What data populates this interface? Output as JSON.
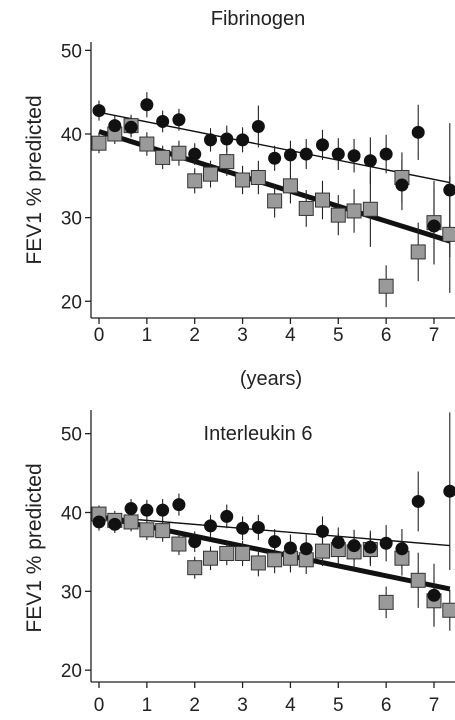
{
  "chart_data": [
    {
      "type": "scatter",
      "title": "Fibrinogen",
      "xlabel": "(years)",
      "ylabel": "FEV1 % predicted",
      "xlim": [
        -0.15,
        7.35
      ],
      "ylim": [
        18,
        51
      ],
      "xticks": [
        "0",
        "1",
        "2",
        "3",
        "4",
        "5",
        "6",
        "7"
      ],
      "yticks": [
        "20",
        "30",
        "40",
        "50"
      ],
      "grid": false,
      "series": [
        {
          "marker": "circle",
          "color": "#111111",
          "x": [
            0,
            0.33,
            0.67,
            1,
            1.33,
            1.67,
            2,
            2.33,
            2.67,
            3,
            3.33,
            3.67,
            4,
            4.33,
            4.67,
            5,
            5.33,
            5.67,
            6,
            6.33,
            6.67,
            7,
            7.33
          ],
          "y": [
            42.8,
            41,
            40.8,
            43.5,
            41.5,
            41.7,
            37.6,
            39.3,
            39.4,
            39.3,
            40.9,
            37.1,
            37.5,
            37.6,
            38.7,
            37.6,
            37.4,
            36.8,
            37.6,
            33.9,
            40.2,
            29,
            33.3
          ],
          "err": [
            1.2,
            1.2,
            1.2,
            1.5,
            1.3,
            1.3,
            1.3,
            1.4,
            1.6,
            1.5,
            2.5,
            1.5,
            1.7,
            1.8,
            1.8,
            1.9,
            2,
            2.8,
            2.3,
            3,
            3.3,
            4.5,
            8
          ],
          "trend": {
            "x0": 0,
            "y0": 42.6,
            "x1": 7.33,
            "y1": 34.2
          }
        },
        {
          "marker": "square",
          "color": "#9a9a9a",
          "x": [
            0,
            0.33,
            0.67,
            1,
            1.33,
            1.67,
            2,
            2.33,
            2.67,
            3,
            3.33,
            3.67,
            4,
            4.33,
            4.67,
            5,
            5.33,
            5.67,
            6,
            6.33,
            6.67,
            7,
            7.33
          ],
          "y": [
            38.9,
            40,
            41,
            38.8,
            37.2,
            37.7,
            34.4,
            35.2,
            36.7,
            34.5,
            34.8,
            32,
            33.8,
            31.1,
            32.1,
            30.3,
            30.8,
            31,
            21.8,
            34.8,
            25.9,
            29.4,
            28
          ],
          "err": [
            1.2,
            1.2,
            1.3,
            1.4,
            1.4,
            1.5,
            1.5,
            1.6,
            1.7,
            1.7,
            2,
            2,
            2.1,
            2.2,
            2.3,
            2.4,
            2.6,
            4.5,
            2.5,
            3,
            3.5,
            5,
            7
          ],
          "trend": {
            "x0": 0,
            "y0": 40.3,
            "x1": 7.33,
            "y1": 27.2
          }
        }
      ]
    },
    {
      "type": "scatter",
      "title": "Interleukin 6",
      "xlabel": "",
      "ylabel": "FEV1 % predicted",
      "xlim": [
        -0.15,
        7.35
      ],
      "ylim": [
        18.5,
        53
      ],
      "xticks": [
        "0",
        "1",
        "2",
        "3",
        "4",
        "5",
        "6",
        "7"
      ],
      "yticks": [
        "20",
        "30",
        "40",
        "50"
      ],
      "grid": false,
      "series": [
        {
          "marker": "circle",
          "color": "#111111",
          "x": [
            0,
            0.33,
            0.67,
            1,
            1.33,
            1.67,
            2,
            2.33,
            2.67,
            3,
            3.33,
            3.67,
            4,
            4.33,
            4.67,
            5,
            5.33,
            5.67,
            6,
            6.33,
            6.67,
            7,
            7.33
          ],
          "y": [
            38.8,
            38.5,
            40.5,
            40.3,
            40.3,
            41,
            36.3,
            38.3,
            39.5,
            38,
            38.1,
            36.3,
            35.5,
            35.4,
            37.6,
            36.2,
            35.8,
            35.6,
            36.1,
            35.4,
            41.4,
            29.5,
            42.7
          ],
          "err": [
            1.1,
            1.1,
            1.2,
            1.3,
            1.4,
            1.4,
            1.3,
            1.4,
            1.5,
            1.5,
            1.6,
            1.6,
            1.7,
            1.8,
            1.9,
            1.9,
            2,
            2.1,
            2.3,
            2.5,
            3.8,
            4,
            10
          ],
          "trend": {
            "x0": 0,
            "y0": 39.5,
            "x1": 7.33,
            "y1": 35.8
          }
        },
        {
          "marker": "square",
          "color": "#9a9a9a",
          "x": [
            0,
            0.33,
            0.67,
            1,
            1.33,
            1.67,
            2,
            2.33,
            2.67,
            3,
            3.33,
            3.67,
            4,
            4.33,
            4.67,
            5,
            5.33,
            5.67,
            6,
            6.33,
            6.67,
            7,
            7.33
          ],
          "y": [
            39.8,
            39,
            38.8,
            37.8,
            37.7,
            36,
            33,
            34.2,
            34.8,
            34.8,
            33.6,
            34,
            34.2,
            34,
            35.1,
            35.3,
            35,
            35.3,
            28.6,
            34.2,
            31.4,
            28.8,
            27.6
          ],
          "err": [
            1.1,
            1.2,
            1.2,
            1.3,
            1.4,
            1.4,
            1.4,
            1.5,
            1.5,
            1.6,
            1.7,
            1.7,
            1.8,
            1.8,
            1.9,
            2,
            2,
            2.1,
            2,
            2.2,
            3.5,
            3,
            2.6
          ],
          "trend": {
            "x0": 0,
            "y0": 39.5,
            "x1": 7.33,
            "y1": 30.3
          }
        }
      ]
    }
  ]
}
